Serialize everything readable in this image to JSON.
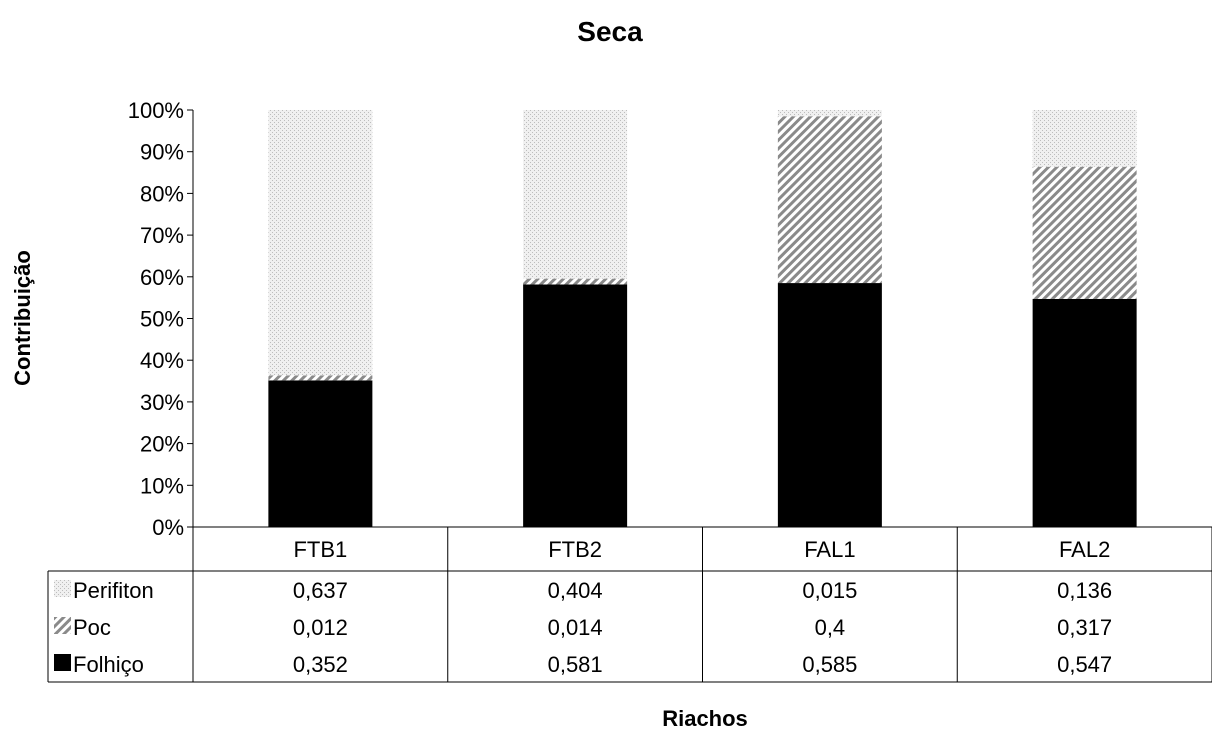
{
  "chart_data": {
    "type": "bar",
    "stacked": true,
    "normalized_percent": true,
    "title": "Seca",
    "xlabel": "Riachos",
    "ylabel": "Contribuição",
    "ylim": [
      0,
      100
    ],
    "y_ticks": [
      "0%",
      "10%",
      "20%",
      "30%",
      "40%",
      "50%",
      "60%",
      "70%",
      "80%",
      "90%",
      "100%"
    ],
    "categories": [
      "FTB1",
      "FTB2",
      "FAL1",
      "FAL2"
    ],
    "series": [
      {
        "name": "Folhiço",
        "values": [
          0.352,
          0.581,
          0.585,
          0.547
        ],
        "labels": [
          "0,352",
          "0,581",
          "0,585",
          "0,547"
        ],
        "color": "#000000",
        "pattern": "solid"
      },
      {
        "name": "Poc",
        "values": [
          0.012,
          0.014,
          0.4,
          0.317
        ],
        "labels": [
          "0,012",
          "0,014",
          "0,4",
          "0,317"
        ],
        "color": "#9a9a9a",
        "pattern": "diagonal-hatch"
      },
      {
        "name": "Perifiton",
        "values": [
          0.637,
          0.404,
          0.015,
          0.136
        ],
        "labels": [
          "0,637",
          "0,404",
          "0,015",
          "0,136"
        ],
        "color": "#e4e4e4",
        "pattern": "light-dots"
      }
    ],
    "data_table_row_order": [
      "Perifiton",
      "Poc",
      "Folhiço"
    ],
    "grid": false,
    "legend": "data-table"
  }
}
